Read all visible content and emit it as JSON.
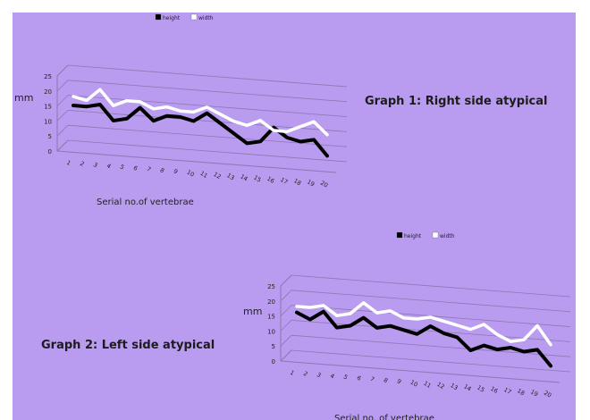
{
  "slide": {
    "captions": [
      "Graph 1: Right side atypical",
      "Graph 2: Left side atypical"
    ]
  },
  "chart_data": [
    {
      "type": "line",
      "title": "",
      "xlabel": "Serial no.of vertebrae",
      "ylabel": "mm",
      "categories": [
        "1",
        "2",
        "3",
        "4",
        "5",
        "6",
        "7",
        "8",
        "9",
        "10",
        "11",
        "12",
        "13",
        "14",
        "15",
        "16",
        "17",
        "18",
        "19",
        "20"
      ],
      "yticks": [
        0,
        5,
        10,
        15,
        20,
        25
      ],
      "ylim": [
        0,
        25
      ],
      "grid": true,
      "legend_position": "top",
      "style": "3d-perspective",
      "series": [
        {
          "name": "height",
          "legend_label": "height",
          "color": "#000000",
          "values": [
            14,
            14,
            15,
            10,
            11,
            15,
            11,
            13,
            13,
            12,
            15,
            12,
            9,
            6,
            7,
            12,
            9,
            8,
            9,
            4
          ]
        },
        {
          "name": "width",
          "legend_label": "width",
          "color": "#ffffff",
          "values": [
            17,
            16,
            20,
            15,
            17,
            17,
            15,
            16,
            15,
            15,
            17,
            15,
            13,
            12,
            14,
            11,
            11,
            13,
            15,
            11
          ]
        }
      ]
    },
    {
      "type": "line",
      "title": "",
      "xlabel": "Serial no. of vertebrae",
      "ylabel": "mm",
      "categories": [
        "1",
        "2",
        "3",
        "4",
        "5",
        "6",
        "7",
        "8",
        "9",
        "10",
        "11",
        "12",
        "13",
        "14",
        "15",
        "16",
        "17",
        "18",
        "19",
        "20"
      ],
      "yticks": [
        0,
        5,
        10,
        15,
        20,
        25
      ],
      "ylim": [
        0,
        25
      ],
      "grid": true,
      "legend_position": "top",
      "style": "3d-perspective",
      "series": [
        {
          "name": "height",
          "legend_label": "height",
          "color": "#000000",
          "values": [
            15,
            13,
            16,
            11,
            12,
            15,
            12,
            13,
            12,
            11,
            14,
            12,
            11,
            7,
            9,
            8,
            9,
            8,
            9,
            4
          ]
        },
        {
          "name": "width",
          "legend_label": "width",
          "color": "#ffffff",
          "values": [
            17,
            17,
            18,
            15,
            16,
            20,
            17,
            18,
            16,
            16,
            17,
            16,
            15,
            14,
            16,
            13,
            11,
            12,
            17,
            11
          ]
        }
      ]
    }
  ]
}
